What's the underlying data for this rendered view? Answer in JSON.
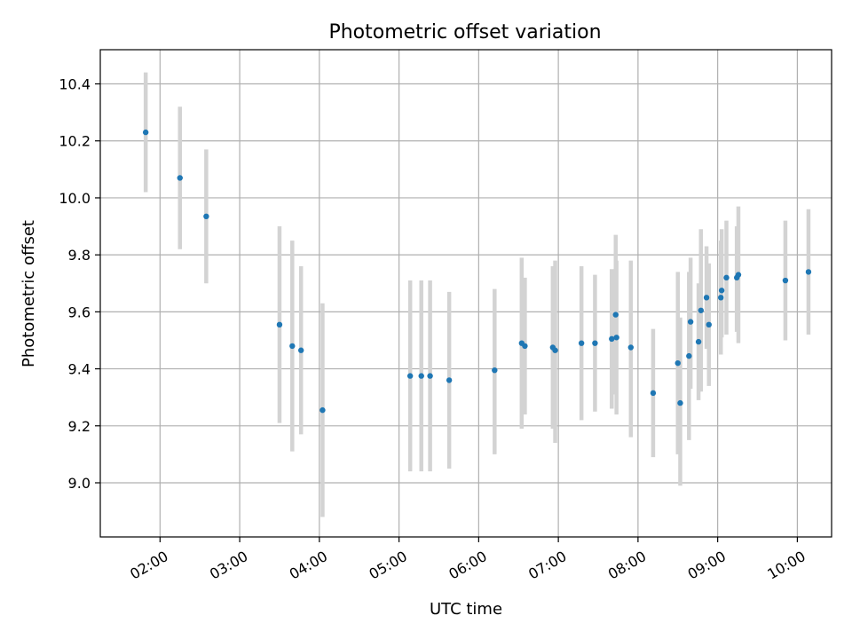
{
  "chart_data": {
    "type": "scatter",
    "title": "Photometric offset variation",
    "xlabel": "UTC time",
    "ylabel": "Photometric offset",
    "x_unit": "hours UTC",
    "xlim": [
      1.25,
      10.43
    ],
    "ylim": [
      8.81,
      10.52
    ],
    "grid": true,
    "legend": "none",
    "marker_color": "#1f77b4",
    "errorbar_color": "#d3d3d3",
    "x_ticks": [
      {
        "value": 2,
        "label": "02:00"
      },
      {
        "value": 3,
        "label": "03:00"
      },
      {
        "value": 4,
        "label": "04:00"
      },
      {
        "value": 5,
        "label": "05:00"
      },
      {
        "value": 6,
        "label": "06:00"
      },
      {
        "value": 7,
        "label": "07:00"
      },
      {
        "value": 8,
        "label": "08:00"
      },
      {
        "value": 9,
        "label": "09:00"
      },
      {
        "value": 10,
        "label": "10:00"
      }
    ],
    "y_ticks": [
      {
        "value": 9.0,
        "label": "9.0"
      },
      {
        "value": 9.2,
        "label": "9.2"
      },
      {
        "value": 9.4,
        "label": "9.4"
      },
      {
        "value": 9.6,
        "label": "9.6"
      },
      {
        "value": 9.8,
        "label": "9.8"
      },
      {
        "value": 10.0,
        "label": "10.0"
      },
      {
        "value": 10.2,
        "label": "10.2"
      },
      {
        "value": 10.4,
        "label": "10.4"
      }
    ],
    "points": [
      {
        "t": 1.82,
        "y": 10.23,
        "lo": 10.02,
        "hi": 10.44
      },
      {
        "t": 2.25,
        "y": 10.07,
        "lo": 9.82,
        "hi": 10.32
      },
      {
        "t": 2.58,
        "y": 9.935,
        "lo": 9.7,
        "hi": 10.17
      },
      {
        "t": 3.5,
        "y": 9.555,
        "lo": 9.21,
        "hi": 9.9
      },
      {
        "t": 3.66,
        "y": 9.48,
        "lo": 9.11,
        "hi": 9.85
      },
      {
        "t": 3.77,
        "y": 9.465,
        "lo": 9.17,
        "hi": 9.76
      },
      {
        "t": 4.04,
        "y": 9.255,
        "lo": 8.88,
        "hi": 9.63
      },
      {
        "t": 5.14,
        "y": 9.375,
        "lo": 9.04,
        "hi": 9.71
      },
      {
        "t": 5.28,
        "y": 9.375,
        "lo": 9.04,
        "hi": 9.71
      },
      {
        "t": 5.39,
        "y": 9.375,
        "lo": 9.04,
        "hi": 9.71
      },
      {
        "t": 5.63,
        "y": 9.36,
        "lo": 9.05,
        "hi": 9.67
      },
      {
        "t": 6.2,
        "y": 9.395,
        "lo": 9.1,
        "hi": 9.68
      },
      {
        "t": 6.54,
        "y": 9.49,
        "lo": 9.19,
        "hi": 9.79
      },
      {
        "t": 6.58,
        "y": 9.48,
        "lo": 9.24,
        "hi": 9.72
      },
      {
        "t": 6.93,
        "y": 9.475,
        "lo": 9.19,
        "hi": 9.76
      },
      {
        "t": 6.96,
        "y": 9.465,
        "lo": 9.14,
        "hi": 9.78
      },
      {
        "t": 7.29,
        "y": 9.49,
        "lo": 9.22,
        "hi": 9.76
      },
      {
        "t": 7.46,
        "y": 9.49,
        "lo": 9.25,
        "hi": 9.73
      },
      {
        "t": 7.67,
        "y": 9.505,
        "lo": 9.26,
        "hi": 9.75
      },
      {
        "t": 7.72,
        "y": 9.59,
        "lo": 9.31,
        "hi": 9.87
      },
      {
        "t": 7.73,
        "y": 9.51,
        "lo": 9.24,
        "hi": 9.78
      },
      {
        "t": 7.91,
        "y": 9.475,
        "lo": 9.16,
        "hi": 9.78
      },
      {
        "t": 8.19,
        "y": 9.315,
        "lo": 9.09,
        "hi": 9.54
      },
      {
        "t": 8.5,
        "y": 9.42,
        "lo": 9.1,
        "hi": 9.74
      },
      {
        "t": 8.53,
        "y": 9.28,
        "lo": 8.99,
        "hi": 9.58
      },
      {
        "t": 8.64,
        "y": 9.445,
        "lo": 9.15,
        "hi": 9.74
      },
      {
        "t": 8.66,
        "y": 9.565,
        "lo": 9.33,
        "hi": 9.79
      },
      {
        "t": 8.76,
        "y": 9.495,
        "lo": 9.29,
        "hi": 9.7
      },
      {
        "t": 8.79,
        "y": 9.605,
        "lo": 9.32,
        "hi": 9.89
      },
      {
        "t": 8.86,
        "y": 9.65,
        "lo": 9.47,
        "hi": 9.83
      },
      {
        "t": 8.89,
        "y": 9.555,
        "lo": 9.34,
        "hi": 9.77
      },
      {
        "t": 9.04,
        "y": 9.65,
        "lo": 9.45,
        "hi": 9.85
      },
      {
        "t": 9.05,
        "y": 9.675,
        "lo": 9.51,
        "hi": 9.89
      },
      {
        "t": 9.11,
        "y": 9.72,
        "lo": 9.52,
        "hi": 9.92
      },
      {
        "t": 9.24,
        "y": 9.72,
        "lo": 9.53,
        "hi": 9.9
      },
      {
        "t": 9.26,
        "y": 9.73,
        "lo": 9.49,
        "hi": 9.97
      },
      {
        "t": 9.85,
        "y": 9.71,
        "lo": 9.5,
        "hi": 9.92
      },
      {
        "t": 10.14,
        "y": 9.74,
        "lo": 9.52,
        "hi": 9.96
      }
    ]
  }
}
